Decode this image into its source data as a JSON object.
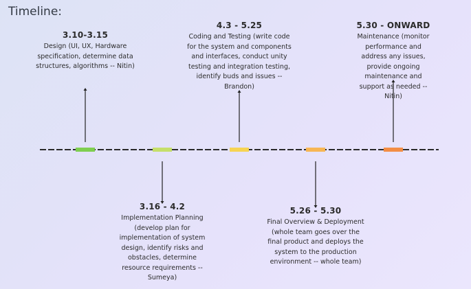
{
  "title": "Timeline:",
  "milestones": [
    {
      "date": "3.10-3.15",
      "desc": "Design (UI, UX, Hardware specification, determine data structures, algorithms -- Nitin)",
      "color": "#7fcf4f",
      "placement": "above"
    },
    {
      "date": "3.16 - 4.2",
      "desc": "Implementation Planning (develop plan for implementation of system design, identify risks and obstacles, determine resource requirements -- Sumeya)",
      "color": "#c5df6a",
      "placement": "below"
    },
    {
      "date": "4.3 - 5.25",
      "desc": "Coding and Testing (write code for the system and components and interfaces, conduct unity testing and integration testing, identify buds and issues -- Brandon)",
      "color": "#f6d452",
      "placement": "above"
    },
    {
      "date": "5.26 - 5.30",
      "desc": "Final Overview & Deployment (whole team goes over the final product and deploys the system to the production environment -- whole team)",
      "color": "#f7b654",
      "placement": "below"
    },
    {
      "date": "5.30 - ONWARD",
      "desc": "Maintenance (monitor performance and address any issues, provide ongoing maintenance and support as needed -- Nitin)",
      "color": "#f38d45",
      "placement": "above"
    }
  ]
}
